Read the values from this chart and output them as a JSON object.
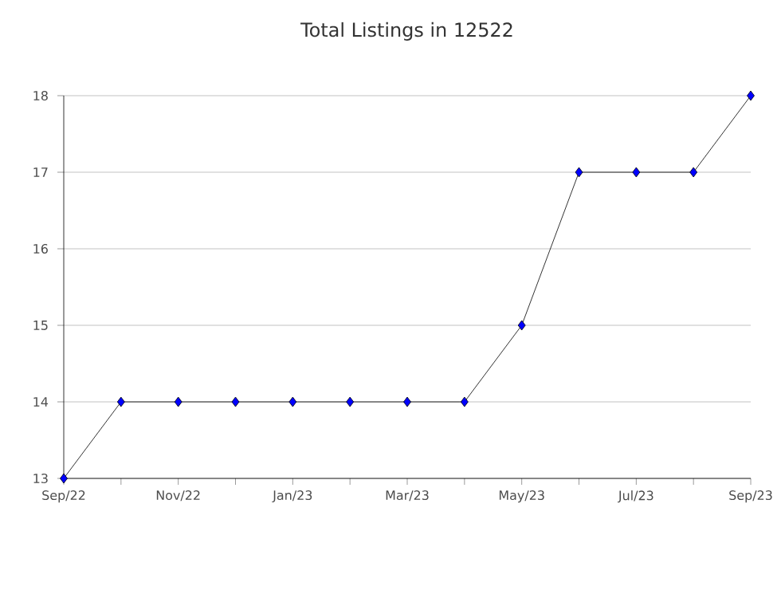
{
  "chart_data": {
    "type": "line",
    "title": "Total Listings in 12522",
    "x": [
      "2022-09",
      "2022-10",
      "2022-11",
      "2022-12",
      "2023-01",
      "2023-02",
      "2023-03",
      "2023-04",
      "2023-05",
      "2023-06",
      "2023-07",
      "2023-08",
      "2023-09"
    ],
    "series": [
      {
        "color": "#0000ff",
        "values": [
          13,
          14,
          14,
          14,
          14,
          14,
          14,
          14,
          15,
          17,
          17,
          17,
          18
        ]
      }
    ],
    "xlim": [
      "2022-09",
      "2023-09"
    ],
    "xticks": [
      {
        "value": "2022-09",
        "label": "Sep/22"
      },
      {
        "value": "2022-10",
        "label": null
      },
      {
        "value": "2022-11",
        "label": "Nov/22"
      },
      {
        "value": "2022-12",
        "label": null
      },
      {
        "value": "2023-01",
        "label": "Jan/23"
      },
      {
        "value": "2023-02",
        "label": null
      },
      {
        "value": "2023-03",
        "label": "Mar/23"
      },
      {
        "value": "2023-04",
        "label": null
      },
      {
        "value": "2023-05",
        "label": "May/23"
      },
      {
        "value": "2023-06",
        "label": null
      },
      {
        "value": "2023-07",
        "label": "Jul/23"
      },
      {
        "value": "2023-08",
        "label": null
      },
      {
        "value": "2023-09",
        "label": "Sep/23"
      }
    ],
    "ylim": [
      13,
      18
    ],
    "yticks": [
      13,
      14,
      15,
      16,
      17,
      18
    ],
    "grid": "y",
    "marker": "diamond",
    "line_style": "solid"
  }
}
